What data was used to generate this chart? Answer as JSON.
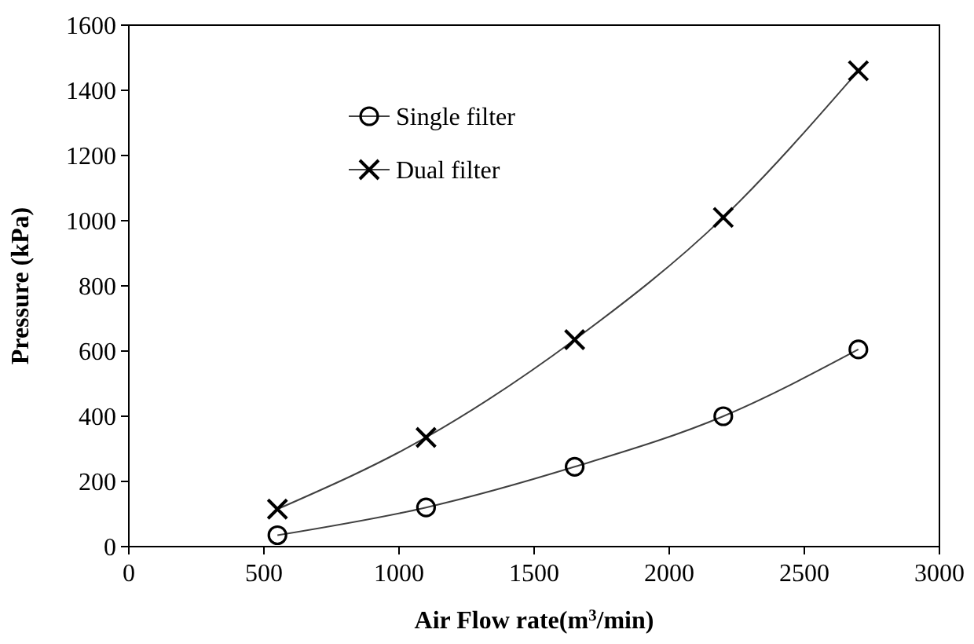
{
  "chart_data": {
    "type": "line",
    "xlabel": "Air Flow rate(m$^{3}$/min)",
    "ylabel": "Pressure (kPa)",
    "xlim": [
      0,
      3000
    ],
    "xticks": [
      0,
      500,
      1000,
      1500,
      2000,
      2500,
      3000
    ],
    "ylim": [
      0,
      1600
    ],
    "yticks": [
      0,
      200,
      400,
      600,
      800,
      1000,
      1200,
      1400,
      1600
    ],
    "x": [
      550,
      1100,
      1650,
      2200,
      2700
    ],
    "series": [
      {
        "name": "Single filter",
        "color": "#000000",
        "marker": "circle",
        "values": [
          35,
          120,
          245,
          400,
          605
        ]
      },
      {
        "name": "Dual filter",
        "color": "#000000",
        "marker": "cross",
        "values": [
          115,
          335,
          635,
          1010,
          1460
        ]
      }
    ],
    "legend": "top left",
    "grid": false,
    "line_style": "solid"
  }
}
